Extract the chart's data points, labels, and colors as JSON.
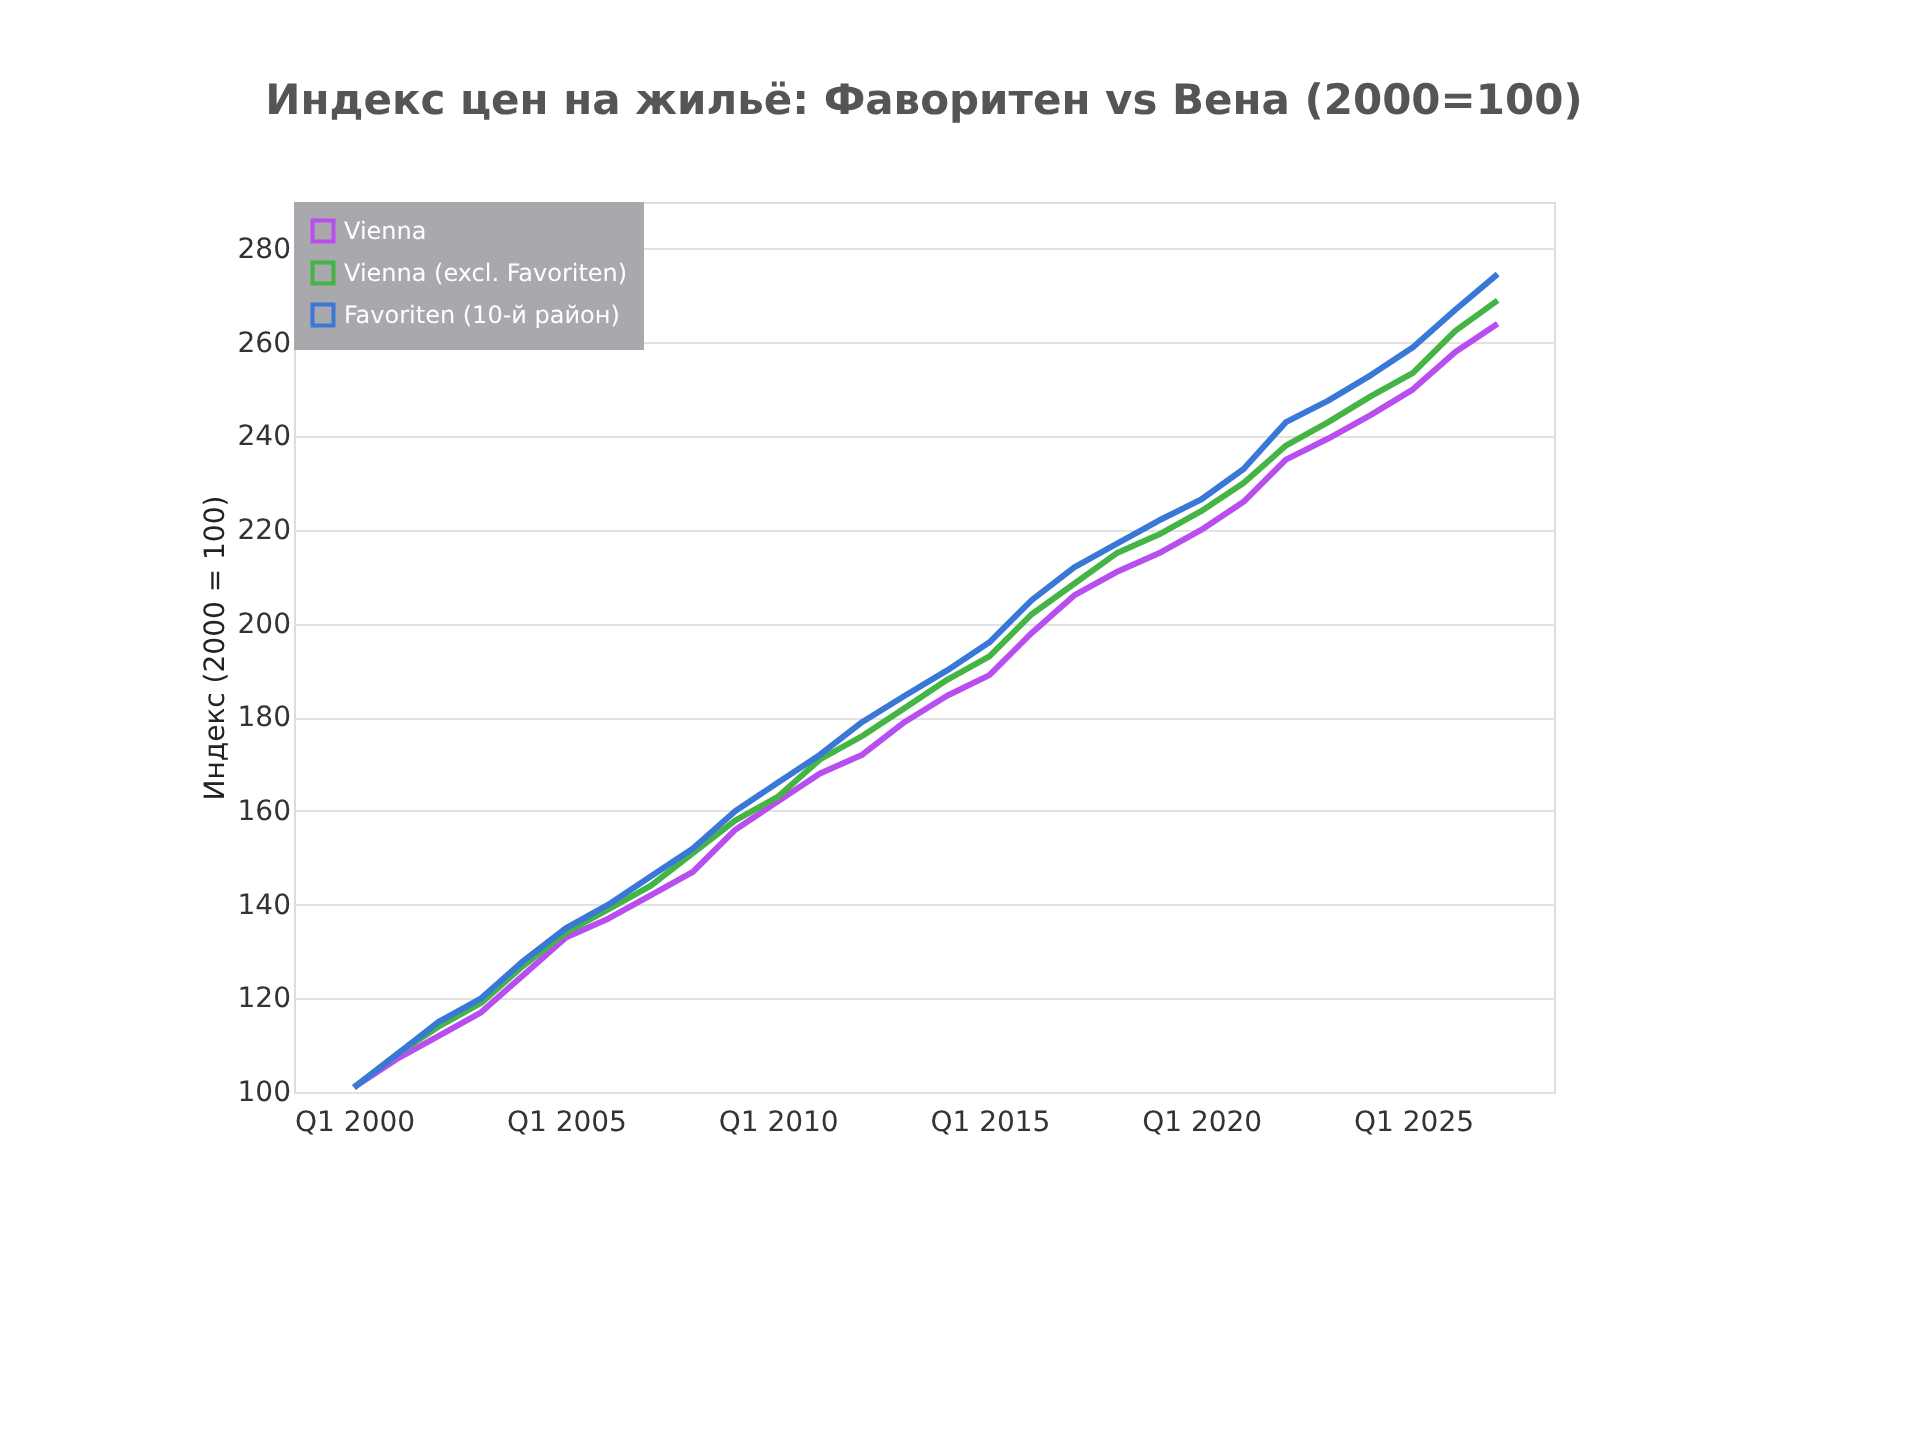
{
  "chart_data": {
    "type": "line",
    "title": "Индекс цен на жильё: Фаворитен vs Вена (2000=100)",
    "ylabel": "Индекс (2000 = 100)",
    "x": [
      "2000-01",
      "2001-01",
      "2002-01",
      "2003-01",
      "2004-01",
      "2005-01",
      "2006-01",
      "2007-01",
      "2008-01",
      "2009-01",
      "2010-01",
      "2011-01",
      "2012-01",
      "2013-01",
      "2014-01",
      "2015-01",
      "2016-01",
      "2017-01",
      "2018-01",
      "2019-01",
      "2020-01",
      "2021-01",
      "2022-01",
      "2023-01",
      "2024-01",
      "2025-01",
      "2026-01",
      "2027-01"
    ],
    "xlim": [
      "1998-08",
      "2028-05"
    ],
    "xticks": [
      {
        "value": "2000-01",
        "label": "Q1 2000"
      },
      {
        "value": "2005-01",
        "label": "Q1 2005"
      },
      {
        "value": "2010-01",
        "label": "Q1 2010"
      },
      {
        "value": "2015-01",
        "label": "Q1 2015"
      },
      {
        "value": "2020-01",
        "label": "Q1 2020"
      },
      {
        "value": "2025-01",
        "label": "Q1 2025"
      }
    ],
    "ylim": [
      100,
      290
    ],
    "yticks": [
      100,
      120,
      140,
      160,
      180,
      200,
      220,
      240,
      260,
      280
    ],
    "series": [
      {
        "name": "Vienna",
        "color": "#b84ef0",
        "values": [
          101,
          107,
          112,
          117,
          125,
          133,
          137,
          142,
          147,
          156,
          162,
          168,
          172,
          179,
          184.6,
          189,
          198,
          206,
          211,
          215,
          220,
          226,
          235,
          239.5,
          244.5,
          250,
          258,
          264
        ]
      },
      {
        "name": "Vienna (excl. Favoriten)",
        "color": "#44b444",
        "values": [
          101,
          108,
          114,
          119,
          127,
          134,
          139,
          144,
          151,
          158,
          163,
          171,
          176,
          182,
          188,
          193,
          202,
          208.5,
          215,
          219,
          224,
          230,
          238,
          243,
          248.5,
          253.5,
          262.5,
          269
        ]
      },
      {
        "name": "Favoriten (10-й район)",
        "color": "#3a78d8",
        "values": [
          101,
          108,
          115,
          120,
          128,
          135,
          140,
          146,
          152,
          160,
          166,
          172,
          179,
          184.6,
          190,
          196,
          205,
          212,
          217,
          222,
          226.5,
          233,
          243,
          247.6,
          253,
          259,
          267,
          274.6
        ]
      }
    ],
    "grid": "y",
    "legend": "top left",
    "line_style": "solid",
    "marker": "none"
  }
}
